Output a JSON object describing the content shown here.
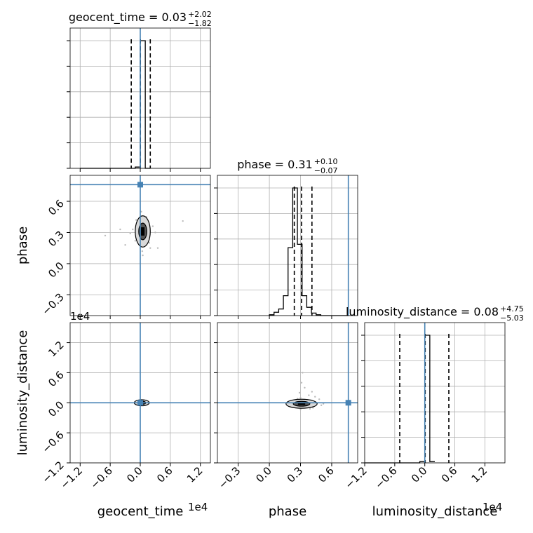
{
  "chart_data": {
    "type": "corner",
    "parameters": [
      "geocent_time",
      "phase",
      "luminosity_distance"
    ],
    "grid": true,
    "injection_color": "#4682b4",
    "hist_color": "#000000",
    "titles": [
      {
        "name": "geocent_time",
        "median": "0.03",
        "plus": "+2.02",
        "minus": "−1.82"
      },
      {
        "name": "phase",
        "median": "0.31",
        "plus": "+0.10",
        "minus": "−0.07"
      },
      {
        "name": "luminosity_distance",
        "median": "0.08",
        "plus": "+4.75",
        "minus": "−5.03"
      }
    ],
    "axes": {
      "geocent_time": {
        "label": "geocent_time",
        "range": [
          -1.4,
          1.4
        ],
        "ticks": [
          -1.2,
          -0.6,
          0.0,
          0.6,
          1.2
        ],
        "tick_labels": [
          "−1.2",
          "−0.6",
          "0.0",
          "0.6",
          "1.2"
        ],
        "multiplier": "1e4"
      },
      "phase": {
        "label": "phase",
        "range": [
          -0.5,
          0.85
        ],
        "ticks": [
          -0.3,
          0.0,
          0.3,
          0.6
        ],
        "tick_labels": [
          "−0.3",
          "0.0",
          "0.3",
          "0.6"
        ],
        "multiplier": ""
      },
      "luminosity_distance": {
        "label": "luminosity_distance",
        "range": [
          -1.2,
          1.6
        ],
        "ticks": [
          -1.2,
          -0.6,
          0.0,
          0.6,
          1.2
        ],
        "tick_labels": [
          "−1.2",
          "−0.6",
          "0.0",
          "0.6",
          "1.2"
        ],
        "multiplier": "1e4"
      }
    },
    "injection": {
      "geocent_time": 0.0,
      "phase": 0.76,
      "luminosity_distance": 0.0
    },
    "quantiles": {
      "geocent_time": [
        -0.18,
        0.003,
        0.2
      ],
      "phase": [
        0.24,
        0.31,
        0.41
      ],
      "luminosity_distance": [
        -0.5,
        0.008,
        0.48
      ]
    },
    "histograms": {
      "geocent_time": {
        "edges": [
          -1.2,
          -1.1,
          -1.0,
          -0.9,
          -0.8,
          -0.7,
          -0.6,
          -0.5,
          -0.4,
          -0.3,
          -0.2,
          -0.1,
          0.0,
          0.1,
          0.2
        ],
        "counts": [
          0,
          0,
          0,
          0,
          0,
          0,
          0,
          0,
          0,
          0,
          0,
          0.01,
          1.0,
          0
        ]
      },
      "phase": {
        "edges": [
          0.0,
          0.045,
          0.09,
          0.135,
          0.18,
          0.225,
          0.27,
          0.315,
          0.36,
          0.405,
          0.45,
          0.495,
          0.54,
          0.585,
          0.63,
          0.675,
          0.72,
          0.765
        ],
        "counts": [
          0.005,
          0.02,
          0.04,
          0.12,
          0.41,
          0.77,
          0.43,
          0.12,
          0.05,
          0.015,
          0.005,
          0,
          0,
          0,
          0,
          0,
          0
        ]
      },
      "luminosity_distance": {
        "edges": [
          -1.2,
          -1.1,
          -1.0,
          -0.9,
          -0.8,
          -0.7,
          -0.6,
          -0.5,
          -0.4,
          -0.3,
          -0.2,
          -0.1,
          0.0,
          0.1,
          0.2
        ],
        "counts": [
          0,
          0,
          0,
          0,
          0,
          0,
          0,
          0,
          0,
          0,
          0,
          0.01,
          1.0,
          0.01
        ]
      }
    },
    "pairs": [
      {
        "x": "geocent_time",
        "y": "phase",
        "center": [
          0.05,
          0.31
        ],
        "width": 0.1,
        "height": 0.1,
        "scatter": [
          [
            0.02,
            0.3
          ],
          [
            0.06,
            0.33
          ],
          [
            -0.05,
            0.28
          ],
          [
            0.1,
            0.35
          ],
          [
            -0.1,
            0.22
          ],
          [
            0.15,
            0.25
          ],
          [
            0.08,
            0.4
          ],
          [
            -0.02,
            0.38
          ],
          [
            0.0,
            0.18
          ],
          [
            0.2,
            0.15
          ],
          [
            -0.15,
            0.33
          ],
          [
            0.3,
            0.3
          ],
          [
            -0.4,
            0.33
          ],
          [
            0.85,
            0.41
          ],
          [
            -0.7,
            0.27
          ],
          [
            0.12,
            0.45
          ],
          [
            0.04,
            0.12
          ],
          [
            -0.08,
            0.42
          ],
          [
            0.25,
            0.36
          ],
          [
            0.18,
            0.2
          ],
          [
            -0.2,
            0.29
          ],
          [
            0.05,
            0.08
          ],
          [
            0.02,
            0.5
          ],
          [
            0.35,
            0.15
          ],
          [
            -0.3,
            0.18
          ]
        ]
      },
      {
        "x": "geocent_time",
        "y": "luminosity_distance",
        "center": [
          0.03,
          0.0
        ],
        "width": 0.1,
        "height": 0.04,
        "scatter": [
          [
            0.02,
            0.0
          ],
          [
            0.05,
            0.02
          ],
          [
            -0.03,
            -0.01
          ],
          [
            0.08,
            -0.03
          ],
          [
            0.01,
            0.04
          ],
          [
            0.0,
            -0.05
          ]
        ]
      },
      {
        "x": "phase",
        "y": "luminosity_distance",
        "center": [
          0.31,
          -0.02
        ],
        "width": 0.1,
        "height": 0.06,
        "scatter": [
          [
            0.28,
            0.0
          ],
          [
            0.33,
            -0.02
          ],
          [
            0.36,
            0.03
          ],
          [
            0.25,
            -0.04
          ],
          [
            0.4,
            0.05
          ],
          [
            0.3,
            0.1
          ],
          [
            0.35,
            -0.08
          ],
          [
            0.45,
            0.0
          ],
          [
            0.2,
            -0.02
          ],
          [
            0.5,
            -0.05
          ],
          [
            0.31,
            0.4
          ],
          [
            0.32,
            0.6
          ],
          [
            0.38,
            0.15
          ],
          [
            0.42,
            -0.1
          ],
          [
            0.27,
            0.08
          ],
          [
            0.22,
            0.03
          ],
          [
            0.48,
            0.07
          ],
          [
            0.29,
            0.2
          ],
          [
            0.34,
            0.3
          ],
          [
            0.39,
            -0.12
          ],
          [
            0.44,
            0.12
          ],
          [
            0.26,
            -0.07
          ],
          [
            0.37,
            0.04
          ],
          [
            0.52,
            -0.02
          ],
          [
            0.18,
            0.0
          ],
          [
            0.41,
            0.22
          ],
          [
            0.3,
            -0.13
          ]
        ]
      }
    ]
  }
}
